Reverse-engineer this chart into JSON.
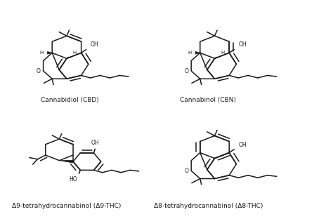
{
  "bg_color": "#ffffff",
  "line_color": "#1a1a1a",
  "labels": [
    "Δ9-tetrahydrocannabinol (Δ9-THC)",
    "Δ8-tetrahydrocannabinol (Δ8-THC)",
    "Cannabidiol (CBD)",
    "Cannabinol (CBN)"
  ],
  "label_fontsize": 6.5,
  "lw": 1.1,
  "s": 0.052
}
